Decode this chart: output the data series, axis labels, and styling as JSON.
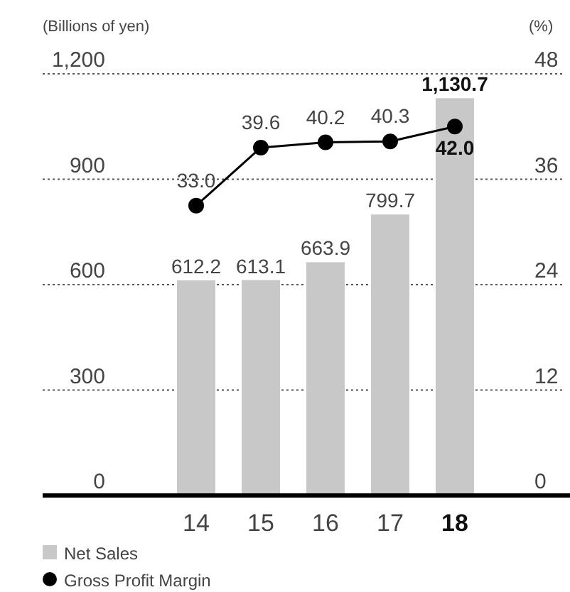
{
  "chart_data": {
    "type": "bar",
    "categories": [
      "14",
      "15",
      "16",
      "17",
      "18"
    ],
    "ylabel": "(Billions of yen)",
    "y2label": "(%)",
    "series": [
      {
        "name": "Net Sales",
        "color": "#c8c8c8",
        "values": [
          612.2,
          613.1,
          663.9,
          799.7,
          1130.7
        ],
        "value_labels": [
          "612.2",
          "613.1",
          "663.9",
          "799.7",
          "1,130.7"
        ]
      },
      {
        "name": "Gross Profit Margin",
        "type": "line",
        "axis": "y2",
        "color": "#000000",
        "marker": "circle",
        "values": [
          33.0,
          39.6,
          40.2,
          40.3,
          42.0
        ],
        "value_labels": [
          "33.0",
          "39.6",
          "40.2",
          "40.3",
          "42.0"
        ]
      }
    ],
    "ylim": [
      0,
      1200
    ],
    "yticks": [
      0,
      300,
      600,
      900,
      {
        "value": 1200,
        "label": "1,200"
      }
    ],
    "y2lim": [
      0,
      48
    ],
    "y2ticks": [
      0,
      12,
      24,
      36,
      48
    ],
    "grid": "y",
    "legend": "bottom left"
  }
}
